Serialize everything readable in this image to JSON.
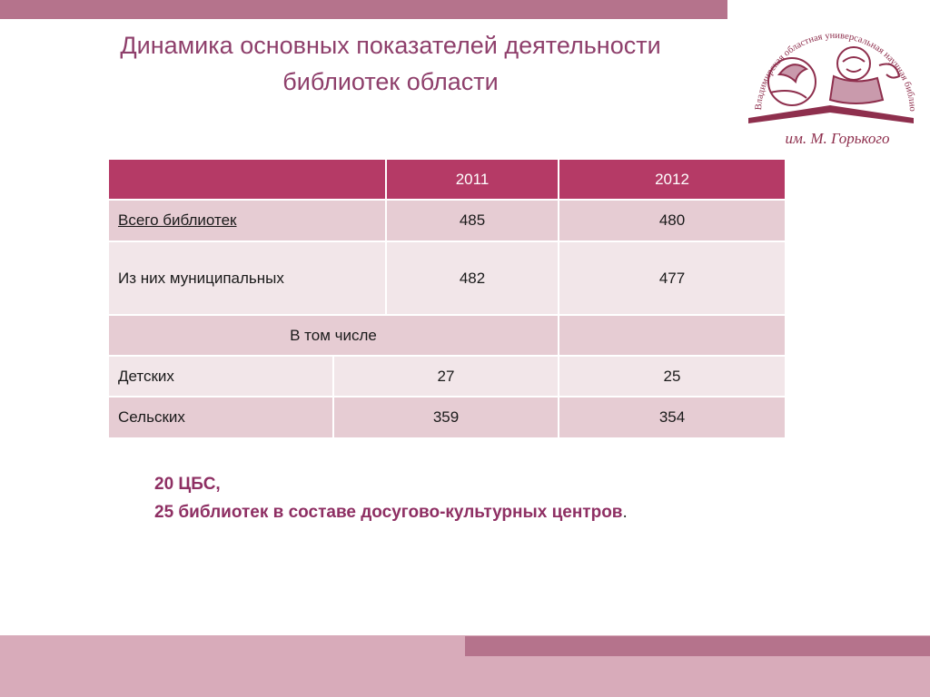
{
  "title": {
    "line1": "Динамика основных показателей деятельности",
    "line2": "библиотек области"
  },
  "logo": {
    "arc_text": "Владимирская областная универсальная научная библиотека",
    "signature": "им. М. Горького",
    "icon": "lion-on-book-emblem"
  },
  "table": {
    "headers": [
      "",
      "2011",
      "2012"
    ],
    "rows": [
      {
        "label": "Всего библиотек",
        "v2011": "485",
        "v2012": "480"
      },
      {
        "label": "Из них муниципальных",
        "v2011": "482",
        "v2012": "477"
      },
      {
        "label": "В том числе",
        "v2012": ""
      },
      {
        "label": "Детских",
        "v2011": "27",
        "v2012": "25"
      },
      {
        "label": "Сельских",
        "v2011": "359",
        "v2012": "354"
      }
    ]
  },
  "note": {
    "line1": "20 ЦБС,",
    "line2": "25 библиотек  в составе досугово-культурных центров",
    "line2_end": "."
  },
  "colors": {
    "accent": "#b5738c",
    "header": "#b53a66",
    "title": "#8e3f6b",
    "row_dark": "#e6ccd3",
    "row_light": "#f2e6e9",
    "band": "#d8abba"
  }
}
